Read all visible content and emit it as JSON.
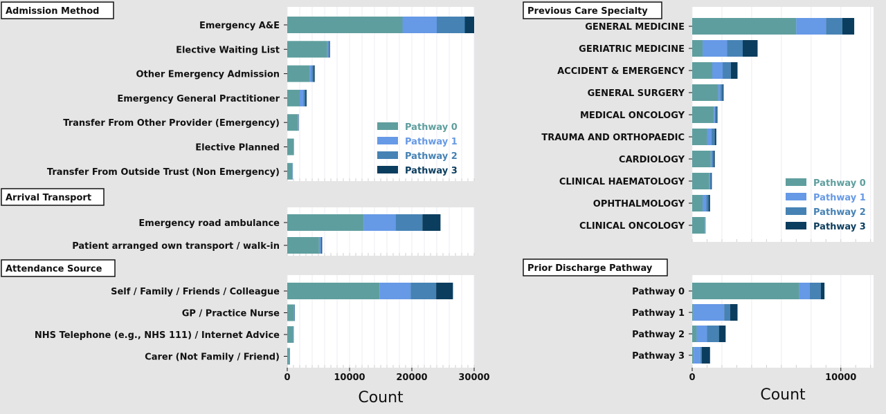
{
  "colors": {
    "background": "#e5e5e5",
    "plot_bg": "#ffffff",
    "gridline": "#ececf4",
    "pathway_0": "#5f9e9e",
    "pathway_1": "#6699e6",
    "pathway_2": "#4682b4",
    "pathway_3": "#0b3d5e"
  },
  "chart_data": [
    {
      "id": "admission",
      "type": "bar",
      "orientation": "horizontal",
      "stacked": true,
      "title": "Admission Method",
      "categories": [
        "Emergency A&E",
        "Elective Waiting List",
        "Other Emergency Admission",
        "Emergency General Practitioner",
        "Transfer From Other Provider (Emergency)",
        "Elective Planned",
        "Transfer From Outside Trust (Non Emergency)"
      ],
      "series": [
        {
          "name": "Pathway 0",
          "values": [
            18500,
            6400,
            3600,
            2000,
            1700,
            1000,
            800
          ]
        },
        {
          "name": "Pathway 1",
          "values": [
            5500,
            200,
            300,
            600,
            50,
            30,
            50
          ]
        },
        {
          "name": "Pathway 2",
          "values": [
            4500,
            150,
            300,
            300,
            50,
            20,
            30
          ]
        },
        {
          "name": "Pathway 3",
          "values": [
            1600,
            100,
            200,
            200,
            50,
            20,
            20
          ]
        }
      ],
      "xlim": [
        0,
        30000
      ],
      "xticks": [],
      "xlabel": "",
      "legend": "bottom-right"
    },
    {
      "id": "transport",
      "type": "bar",
      "orientation": "horizontal",
      "stacked": true,
      "title": "Arrival Transport",
      "categories": [
        "Emergency road ambulance",
        "Patient arranged own transport / walk-in"
      ],
      "series": [
        {
          "name": "Pathway 0",
          "values": [
            12300,
            5100
          ]
        },
        {
          "name": "Pathway 1",
          "values": [
            5100,
            250
          ]
        },
        {
          "name": "Pathway 2",
          "values": [
            4300,
            150
          ]
        },
        {
          "name": "Pathway 3",
          "values": [
            2900,
            100
          ]
        }
      ],
      "xlim": [
        0,
        30000
      ],
      "xticks": [],
      "xlabel": ""
    },
    {
      "id": "attendance",
      "type": "bar",
      "orientation": "horizontal",
      "stacked": true,
      "title": "Attendance Source",
      "categories": [
        "Self / Family / Friends / Colleague",
        "GP / Practice Nurse",
        "NHS Telephone (e.g., NHS 111) / Internet Advice",
        "Carer (Not Family / Friend)"
      ],
      "series": [
        {
          "name": "Pathway 0",
          "values": [
            14800,
            1000,
            900,
            300
          ]
        },
        {
          "name": "Pathway 1",
          "values": [
            5000,
            100,
            50,
            80
          ]
        },
        {
          "name": "Pathway 2",
          "values": [
            4100,
            60,
            50,
            40
          ]
        },
        {
          "name": "Pathway 3",
          "values": [
            2700,
            40,
            30,
            20
          ]
        }
      ],
      "xlim": [
        0,
        30000
      ],
      "xticks": [
        "0",
        "10000",
        "20000",
        "30000"
      ],
      "xlabel": "Count"
    },
    {
      "id": "specialty",
      "type": "bar",
      "orientation": "horizontal",
      "stacked": true,
      "title": "Previous Care Specialty",
      "categories": [
        "GENERAL MEDICINE",
        "GERIATRIC MEDICINE",
        "ACCIDENT & EMERGENCY",
        "GENERAL SURGERY",
        "MEDICAL ONCOLOGY",
        "TRAUMA AND ORTHOPAEDIC",
        "CARDIOLOGY",
        "CLINICAL HAEMATOLOGY",
        "OPHTHALMOLOGY",
        "CLINICAL ONCOLOGY"
      ],
      "series": [
        {
          "name": "Pathway 0",
          "values": [
            7000,
            700,
            1350,
            1750,
            1450,
            1000,
            1250,
            1150,
            700,
            850
          ]
        },
        {
          "name": "Pathway 1",
          "values": [
            2000,
            1650,
            700,
            150,
            80,
            300,
            100,
            60,
            250,
            20
          ]
        },
        {
          "name": "Pathway 2",
          "values": [
            1100,
            1050,
            550,
            150,
            120,
            220,
            100,
            60,
            150,
            20
          ]
        },
        {
          "name": "Pathway 3",
          "values": [
            800,
            1000,
            450,
            60,
            50,
            100,
            70,
            50,
            100,
            10
          ]
        }
      ],
      "xlim": [
        0,
        12200
      ],
      "xticks": [],
      "xlabel": "",
      "legend": "bottom-right"
    },
    {
      "id": "prior",
      "type": "bar",
      "orientation": "horizontal",
      "stacked": true,
      "title": "Prior Discharge Pathway",
      "categories": [
        "Pathway 0",
        "Pathway 1",
        "Pathway 2",
        "Pathway 3"
      ],
      "series": [
        {
          "name": "Pathway 0",
          "values": [
            7200,
            50,
            300,
            100
          ]
        },
        {
          "name": "Pathway 1",
          "values": [
            700,
            2100,
            700,
            450
          ]
        },
        {
          "name": "Pathway 2",
          "values": [
            750,
            400,
            800,
            100
          ]
        },
        {
          "name": "Pathway 3",
          "values": [
            250,
            500,
            450,
            550
          ]
        }
      ],
      "xlim": [
        0,
        12200
      ],
      "xticks": [
        "0",
        "10000"
      ],
      "xlabel": "Count"
    }
  ]
}
